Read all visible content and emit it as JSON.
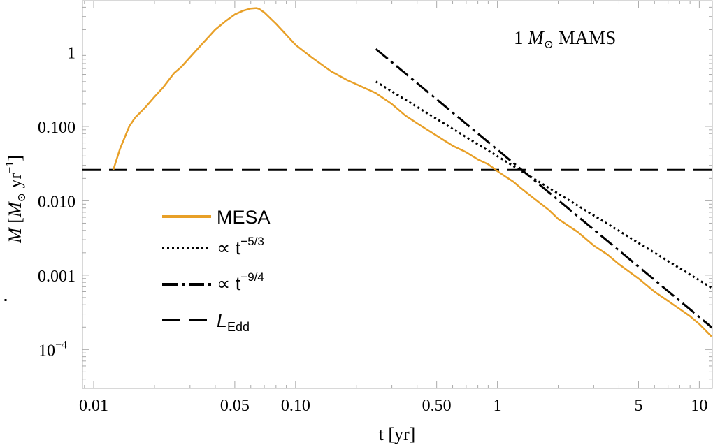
{
  "chart_data": {
    "type": "line",
    "xscale": "log",
    "yscale": "log",
    "xlim": [
      0.0088,
      11.6
    ],
    "ylim": [
      3e-05,
      4.9
    ],
    "xlabel": "t [yr]",
    "ylabel_parts": {
      "m": "M",
      "sub": "⊙",
      "bracket_open": "[",
      "unit": "yr",
      "exp": "−1",
      "bracket_close": "]"
    },
    "annotation": {
      "prefix": "1 ",
      "m": "M",
      "sub": "⊙",
      "suffix": " MAMS"
    },
    "x_ticks": [
      {
        "value": 0.01,
        "label": "0.01"
      },
      {
        "value": 0.05,
        "label": "0.05"
      },
      {
        "value": 0.1,
        "label": "0.10"
      },
      {
        "value": 0.5,
        "label": "0.50"
      },
      {
        "value": 1,
        "label": "1"
      },
      {
        "value": 5,
        "label": "5"
      },
      {
        "value": 10,
        "label": "10"
      }
    ],
    "y_ticks": [
      {
        "value": 1,
        "label": "1"
      },
      {
        "value": 0.1,
        "label": "0.100"
      },
      {
        "value": 0.01,
        "label": "0.010"
      },
      {
        "value": 0.001,
        "label": "0.001"
      },
      {
        "value": 0.0001,
        "label": "10",
        "exp": "−4"
      }
    ],
    "series": [
      {
        "name": "MESA",
        "style": "solid",
        "color": "#E8A028",
        "x": [
          0.0125,
          0.0135,
          0.015,
          0.016,
          0.018,
          0.02,
          0.022,
          0.025,
          0.027,
          0.03,
          0.035,
          0.04,
          0.045,
          0.05,
          0.055,
          0.06,
          0.064,
          0.066,
          0.07,
          0.08,
          0.09,
          0.1,
          0.12,
          0.15,
          0.18,
          0.2,
          0.25,
          0.3,
          0.35,
          0.4,
          0.5,
          0.6,
          0.7,
          0.8,
          0.9,
          1.0,
          1.1,
          1.2,
          1.3,
          1.5,
          1.8,
          2.0,
          2.5,
          3.0,
          3.5,
          4.0,
          5.0,
          6.0,
          7.0,
          8.0,
          9.0,
          10.0,
          11.5
        ],
        "y": [
          0.026,
          0.05,
          0.1,
          0.13,
          0.18,
          0.25,
          0.33,
          0.52,
          0.62,
          0.85,
          1.35,
          2.0,
          2.6,
          3.2,
          3.6,
          3.85,
          3.9,
          3.8,
          3.4,
          2.4,
          1.7,
          1.25,
          0.85,
          0.55,
          0.42,
          0.37,
          0.28,
          0.2,
          0.14,
          0.11,
          0.075,
          0.055,
          0.045,
          0.036,
          0.031,
          0.025,
          0.021,
          0.018,
          0.015,
          0.011,
          0.0075,
          0.0057,
          0.0038,
          0.0025,
          0.0019,
          0.0014,
          0.0009,
          0.0006,
          0.00045,
          0.00035,
          0.00028,
          0.00022,
          0.00015
        ]
      },
      {
        "name": "∝ t",
        "exp": "−5/3",
        "style": "dotted",
        "color": "#000000",
        "power": -1.6667,
        "anchor": {
          "t": 0.25,
          "y": 0.4
        },
        "t_range": [
          0.25,
          11.6
        ]
      },
      {
        "name": "∝ t",
        "exp": "−9/4",
        "style": "dashdot",
        "color": "#000000",
        "power": -2.25,
        "anchor": {
          "t": 0.25,
          "y": 1.1
        },
        "t_range": [
          0.25,
          11.6
        ]
      },
      {
        "name": "L",
        "sub": "Edd",
        "style": "dashed",
        "color": "#000000",
        "constant": 0.026
      }
    ],
    "legend_position": "lower-left"
  }
}
